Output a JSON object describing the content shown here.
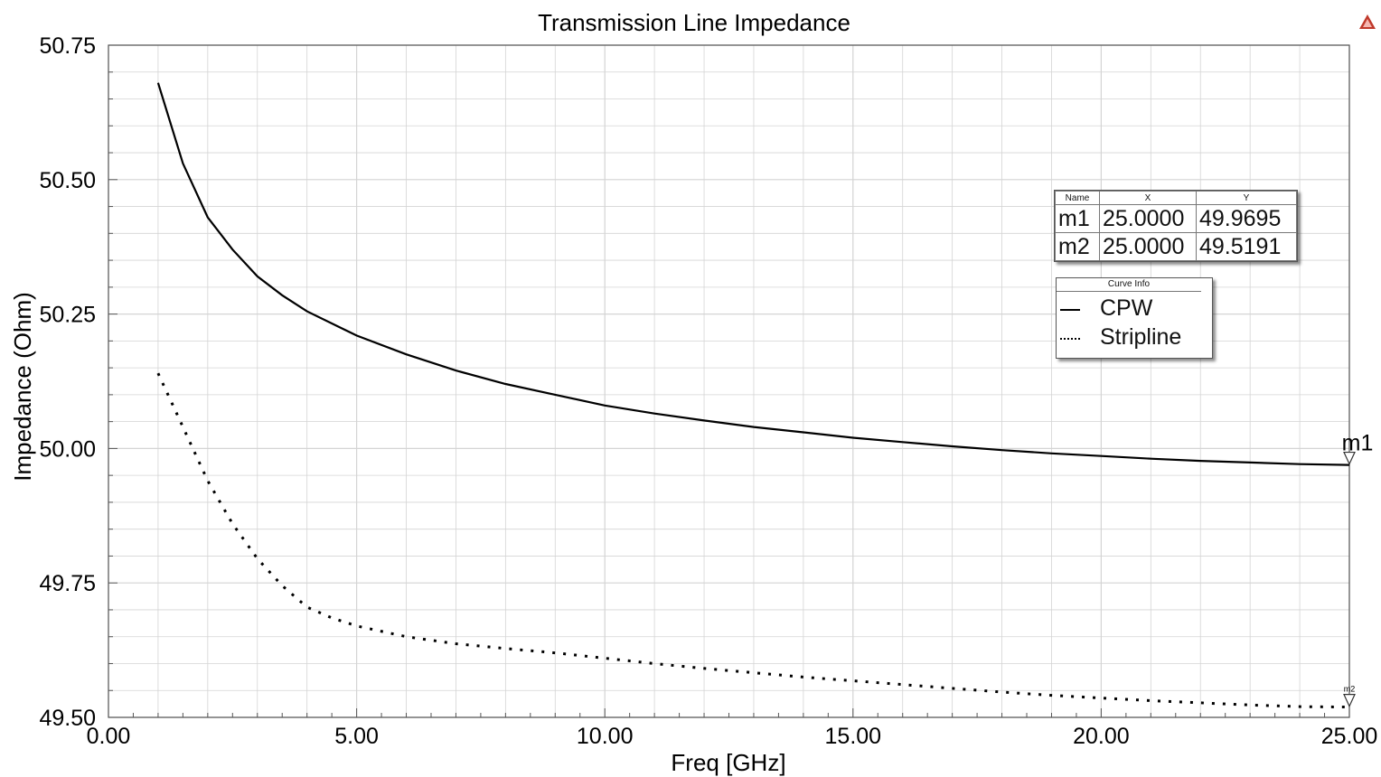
{
  "chart_data": {
    "type": "line",
    "title": "Transmission Line Impedance",
    "xlabel": "Freq [GHz]",
    "ylabel": "Impedance (Ohm)",
    "xlim": [
      0,
      25
    ],
    "ylim": [
      49.5,
      50.75
    ],
    "x_ticks": [
      "0.00",
      "5.00",
      "10.00",
      "15.00",
      "20.00",
      "25.00"
    ],
    "y_ticks": [
      "49.50",
      "49.75",
      "50.00",
      "50.25",
      "50.50",
      "50.75"
    ],
    "grid": true,
    "series": [
      {
        "name": "CPW",
        "style": "solid",
        "color": "#000000",
        "x": [
          1,
          1.5,
          2,
          2.5,
          3,
          3.5,
          4,
          5,
          6,
          7,
          8,
          9,
          10,
          11,
          12,
          13,
          14,
          15,
          16,
          17,
          18,
          19,
          20,
          21,
          22,
          23,
          24,
          25
        ],
        "y": [
          50.68,
          50.53,
          50.43,
          50.37,
          50.32,
          50.285,
          50.255,
          50.21,
          50.175,
          50.145,
          50.12,
          50.1,
          50.08,
          50.065,
          50.052,
          50.04,
          50.03,
          50.02,
          50.012,
          50.004,
          49.997,
          49.991,
          49.986,
          49.981,
          49.977,
          49.974,
          49.971,
          49.9695
        ]
      },
      {
        "name": "Stripline",
        "style": "dotted",
        "color": "#000000",
        "x": [
          1,
          1.5,
          2,
          2.5,
          3,
          3.5,
          4,
          4.5,
          5,
          6,
          7,
          8,
          9,
          10,
          11,
          12,
          13,
          14,
          15,
          16,
          17,
          18,
          19,
          20,
          21,
          22,
          23,
          24,
          25
        ],
        "y": [
          50.14,
          50.04,
          49.94,
          49.86,
          49.795,
          49.745,
          49.705,
          49.685,
          49.67,
          49.65,
          49.637,
          49.628,
          49.62,
          49.61,
          49.6,
          49.591,
          49.583,
          49.575,
          49.568,
          49.561,
          49.554,
          49.547,
          49.541,
          49.536,
          49.531,
          49.527,
          49.523,
          49.52,
          49.5191
        ]
      }
    ],
    "markers": [
      {
        "name": "m1",
        "x": 25,
        "y": 49.9695,
        "series": "CPW"
      },
      {
        "name": "m2",
        "x": 25,
        "y": 49.5191,
        "series": "Stripline"
      }
    ]
  },
  "marker_table": {
    "headers": [
      "Name",
      "X",
      "Y"
    ],
    "rows": [
      [
        "m1",
        "25.0000",
        "49.9695"
      ],
      [
        "m2",
        "25.0000",
        "49.5191"
      ]
    ]
  },
  "legend": {
    "title": "Curve Info",
    "items": [
      "CPW",
      "Stripline"
    ]
  },
  "icons": {
    "corner": "warning-triangle-icon"
  },
  "colors": {
    "grid": "#d4d4d4",
    "axis": "#555555",
    "curve": "#000000"
  }
}
